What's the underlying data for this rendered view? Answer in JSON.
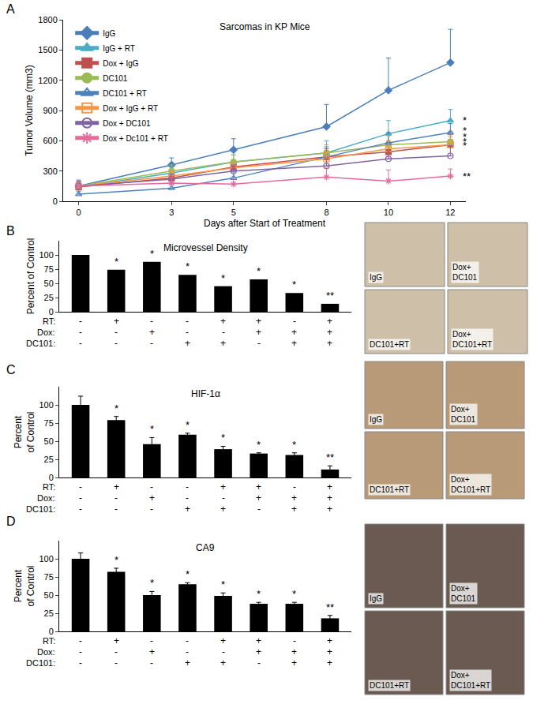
{
  "chart_data": [
    {
      "type": "line",
      "panel": "A",
      "title": "Sarcomas in KP Mice",
      "xlabel": "Days after Start of Treatment",
      "ylabel": "Tumor Volume (mm3)",
      "x": [
        0,
        3,
        5,
        8,
        10,
        12
      ],
      "xlim": [
        -0.5,
        12.5
      ],
      "xticks": [
        0,
        3,
        5,
        8,
        10,
        12
      ],
      "ylim": [
        0,
        1800
      ],
      "yticks": [
        0,
        300,
        600,
        900,
        1200,
        1500,
        1800
      ],
      "grid": false,
      "legend": "upper left",
      "series": [
        {
          "name": "IgG",
          "color": "#4a7ebb",
          "marker": "diamond",
          "values": [
            150,
            360,
            510,
            740,
            1100,
            1375
          ],
          "errors": [
            60,
            70,
            110,
            220,
            320,
            330
          ]
        },
        {
          "name": "IgG + RT",
          "color": "#4bacc6",
          "marker": "triangle-up",
          "values": [
            140,
            280,
            390,
            480,
            670,
            800
          ],
          "errors": [
            40,
            60,
            70,
            120,
            130,
            110
          ]
        },
        {
          "name": "Dox + IgG",
          "color": "#c0504d",
          "marker": "square",
          "values": [
            140,
            230,
            340,
            440,
            490,
            560
          ],
          "errors": [
            40,
            50,
            60,
            80,
            90,
            100
          ]
        },
        {
          "name": "DC101",
          "color": "#9bbb59",
          "marker": "circle",
          "values": [
            150,
            300,
            390,
            480,
            560,
            590
          ],
          "errors": [
            50,
            60,
            70,
            80,
            90,
            100
          ]
        },
        {
          "name": "DC101 + RT",
          "color": "#4f81bd",
          "marker": "triangle-up-open",
          "values": [
            70,
            130,
            230,
            440,
            580,
            680
          ],
          "errors": [
            30,
            40,
            60,
            100,
            100,
            90
          ]
        },
        {
          "name": "Dox + IgG + RT",
          "color": "#f79646",
          "marker": "square-open",
          "values": [
            150,
            250,
            330,
            420,
            520,
            560
          ],
          "errors": [
            40,
            50,
            60,
            70,
            80,
            80
          ]
        },
        {
          "name": "Dox + DC101",
          "color": "#8064a2",
          "marker": "circle-open",
          "values": [
            150,
            220,
            300,
            350,
            420,
            450
          ],
          "errors": [
            40,
            50,
            60,
            70,
            90,
            100
          ]
        },
        {
          "name": "Dox + Dc101 + RT",
          "color": "#e46c9d",
          "marker": "asterisk-open",
          "values": [
            150,
            180,
            170,
            240,
            200,
            250
          ],
          "errors": [
            50,
            60,
            60,
            90,
            110,
            70
          ]
        }
      ],
      "annotations": [
        {
          "text": "*",
          "x": 12,
          "y": 800
        },
        {
          "text": "*",
          "x": 12,
          "y": 700
        },
        {
          "text": "*",
          "x": 12,
          "y": 640
        },
        {
          "text": "*",
          "x": 12,
          "y": 590
        },
        {
          "text": "*",
          "x": 12,
          "y": 550
        },
        {
          "text": "**",
          "x": 12,
          "y": 250
        }
      ]
    },
    {
      "type": "bar",
      "panel": "B",
      "title": "Microvessel Density",
      "ylabel": "Percent of Control",
      "factors": [
        {
          "label": "RT:",
          "signs": [
            "-",
            "+",
            "-",
            "-",
            "+",
            "+",
            "-",
            "+"
          ]
        },
        {
          "label": "Dox:",
          "signs": [
            "-",
            "-",
            "+",
            "-",
            "-",
            "+",
            "+",
            "+"
          ]
        },
        {
          "label": "DC101:",
          "signs": [
            "-",
            "-",
            "-",
            "+",
            "+",
            "-",
            "+",
            "+"
          ]
        }
      ],
      "values": [
        100,
        74,
        88,
        65,
        45,
        57,
        33,
        14
      ],
      "significance": [
        null,
        "*",
        "*",
        "*",
        "*",
        "*",
        "*",
        "**"
      ],
      "color": "#000000",
      "ylim": [
        0,
        125
      ],
      "yticks": [
        0,
        25,
        50,
        75,
        100
      ],
      "grid": false,
      "image_labels": [
        "IgG",
        "Dox+\nDC101",
        "DC101+RT",
        "Dox+\nDC101+RT"
      ]
    },
    {
      "type": "bar",
      "panel": "C",
      "title": "HIF-1α",
      "ylabel": "Percent\nof Control",
      "factors": [
        {
          "label": "RT:",
          "signs": [
            "-",
            "+",
            "-",
            "-",
            "+",
            "+",
            "-",
            "+"
          ]
        },
        {
          "label": "Dox:",
          "signs": [
            "-",
            "-",
            "+",
            "-",
            "-",
            "+",
            "+",
            "+"
          ]
        },
        {
          "label": "DC101:",
          "signs": [
            "-",
            "-",
            "-",
            "+",
            "+",
            "-",
            "+",
            "+"
          ]
        }
      ],
      "values": [
        100,
        79,
        46,
        59,
        39,
        33,
        31,
        11
      ],
      "errors": [
        12,
        5,
        9,
        2,
        4,
        1,
        3,
        5
      ],
      "significance": [
        null,
        "*",
        "*",
        "*",
        "*",
        "*",
        "*",
        "**"
      ],
      "color": "#000000",
      "ylim": [
        0,
        125
      ],
      "yticks": [
        0,
        25,
        50,
        75,
        100
      ],
      "grid": false,
      "image_labels": [
        "IgG",
        "Dox+\nDC101",
        "DC101+RT",
        "Dox+\nDC101+RT"
      ]
    },
    {
      "type": "bar",
      "panel": "D",
      "title": "CA9",
      "ylabel": "Percent\nof Control",
      "factors": [
        {
          "label": "RT:",
          "signs": [
            "-",
            "+",
            "-",
            "-",
            "+",
            "+",
            "-",
            "+"
          ]
        },
        {
          "label": "Dox:",
          "signs": [
            "-",
            "-",
            "+",
            "-",
            "-",
            "+",
            "+",
            "+"
          ]
        },
        {
          "label": "DC101:",
          "signs": [
            "-",
            "-",
            "-",
            "+",
            "+",
            "-",
            "+",
            "+"
          ]
        }
      ],
      "values": [
        100,
        82,
        50,
        65,
        49,
        38,
        38,
        18
      ],
      "errors": [
        8,
        5,
        5,
        2,
        4,
        2,
        2,
        4
      ],
      "significance": [
        null,
        "*",
        "*",
        "*",
        "*",
        "*",
        "*",
        "**"
      ],
      "color": "#000000",
      "ylim": [
        0,
        125
      ],
      "yticks": [
        0,
        25,
        50,
        75,
        100
      ],
      "grid": false,
      "image_labels": [
        "IgG",
        "Dox+\nDC101",
        "DC101+RT",
        "Dox+\nDC101+RT"
      ]
    }
  ]
}
